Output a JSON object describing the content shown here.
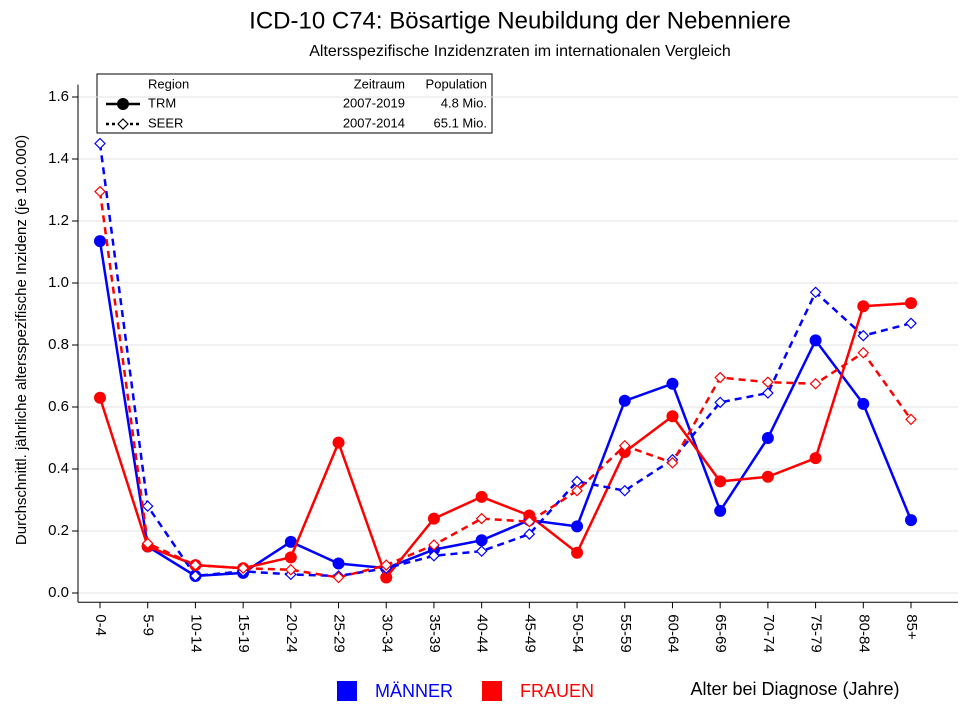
{
  "chart_data": {
    "type": "line",
    "title": "ICD-10 C74: Bösartige Neubildung der Nebenniere",
    "subtitle": "Altersspezifische Inzidenzraten im internationalen Vergleich",
    "x_label": "Alter bei Diagnose (Jahre)",
    "y_label": "Durchschnittl. jährliche altersspezifische Inzidenz (je 100.000)",
    "categories": [
      "0-4",
      "5-9",
      "10-14",
      "15-19",
      "20-24",
      "25-29",
      "30-34",
      "35-39",
      "40-44",
      "45-49",
      "50-54",
      "55-59",
      "60-64",
      "65-69",
      "70-74",
      "75-79",
      "80-84",
      "85+"
    ],
    "ylim": [
      -0.03,
      1.64
    ],
    "yticks": [
      {
        "value": 0,
        "label": "0.0"
      },
      0.2,
      0.4,
      0.6,
      0.8,
      {
        "value": 1,
        "label": "1.0"
      },
      1.2,
      1.4,
      1.6
    ],
    "grid": true,
    "groups": [
      {
        "name": "MÄNNER",
        "color": "#0000ff"
      },
      {
        "name": "FRAUEN",
        "color": "#ff0000"
      }
    ],
    "legend_header": [
      "Region",
      "Zeitraum",
      "Population"
    ],
    "regions": [
      {
        "name": "TRM",
        "period": "2007-2019",
        "population": "4.8 Mio.",
        "dashed": false,
        "marker": "circle",
        "values": [
          [
            1.135,
            0.15,
            0.055,
            0.065,
            0.165,
            0.095,
            0.08,
            0.14,
            0.17,
            0.235,
            0.215,
            0.62,
            0.675,
            0.265,
            0.5,
            0.815,
            0.61,
            0.235
          ],
          [
            0.63,
            0.15,
            0.09,
            0.08,
            0.115,
            0.485,
            0.05,
            0.24,
            0.31,
            0.25,
            0.13,
            0.455,
            0.57,
            0.36,
            0.375,
            0.435,
            0.925,
            0.935
          ]
        ]
      },
      {
        "name": "SEER",
        "period": "2007-2014",
        "population": "65.1 Mio.",
        "dashed": true,
        "marker": "diamond",
        "values": [
          [
            1.45,
            0.28,
            0.055,
            0.07,
            0.06,
            0.055,
            0.08,
            0.12,
            0.135,
            0.19,
            0.36,
            0.33,
            0.43,
            0.615,
            0.645,
            0.97,
            0.83,
            0.87
          ],
          [
            1.295,
            0.16,
            0.09,
            0.08,
            0.075,
            0.05,
            0.09,
            0.155,
            0.24,
            0.23,
            0.33,
            0.475,
            0.42,
            0.695,
            0.68,
            0.675,
            0.775,
            0.56
          ]
        ]
      }
    ]
  }
}
